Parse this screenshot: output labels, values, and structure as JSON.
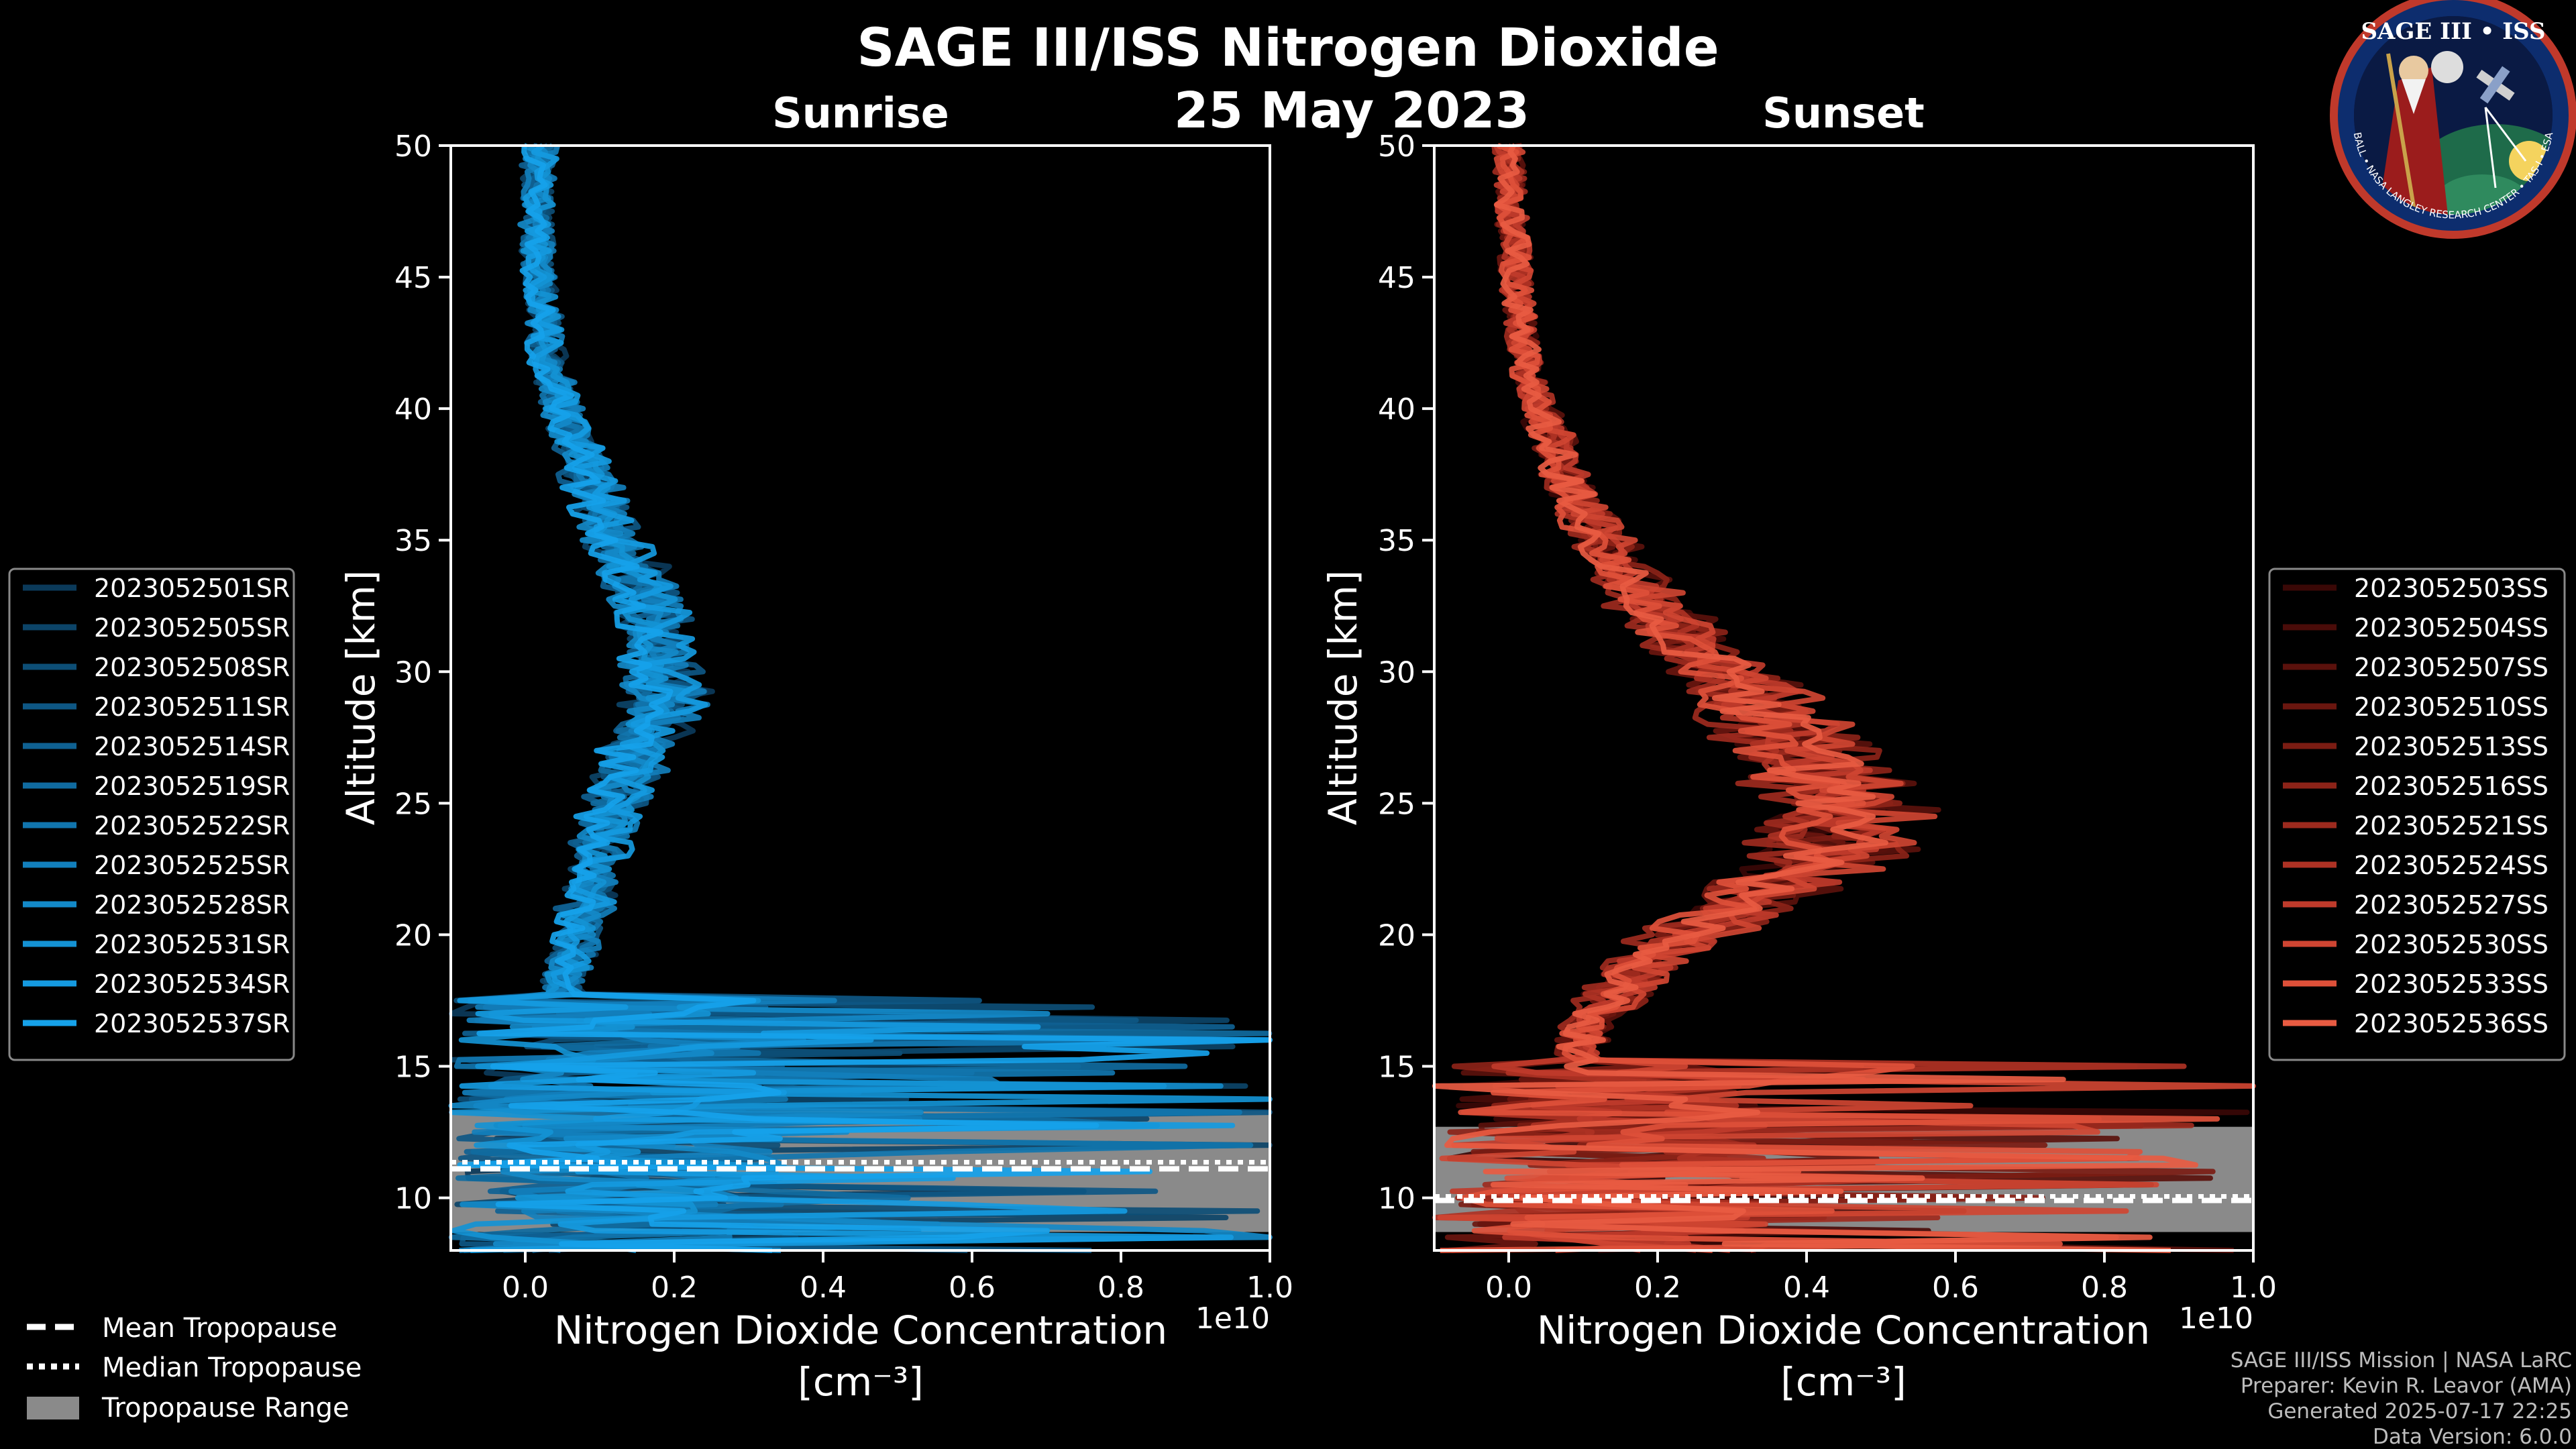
{
  "title": "SAGE III/ISS Nitrogen Dioxide",
  "date": "25 May 2023",
  "logo": {
    "text": "SAGE III • ISS",
    "ring_text": "BALL • NASA LANGLEY RESEARCH CENTER • TAS-I • ESA"
  },
  "chart_data": [
    {
      "type": "line",
      "title": "Sunrise",
      "xlabel": "Nitrogen Dioxide Concentration",
      "xunit": "[cm⁻³]",
      "ylabel": "Altitude [km]",
      "offset_label": "1e10",
      "xlim": [
        -0.1,
        1.0
      ],
      "ylim": [
        8,
        50
      ],
      "xticks": [
        "0.0",
        "0.2",
        "0.4",
        "0.6",
        "0.8",
        "1.0"
      ],
      "yticks": [
        "10",
        "15",
        "20",
        "25",
        "30",
        "35",
        "40",
        "45",
        "50"
      ],
      "tropopause": {
        "mean": 11.1,
        "median": 11.2,
        "range": [
          8.7,
          13.3
        ]
      },
      "series_names": [
        "2023052501SR",
        "2023052505SR",
        "2023052508SR",
        "2023052511SR",
        "2023052514SR",
        "2023052519SR",
        "2023052522SR",
        "2023052525SR",
        "2023052528SR",
        "2023052531SR",
        "2023052534SR",
        "2023052537SR"
      ],
      "series_colors": [
        "#0b3a5a",
        "#0c4468",
        "#0d4e76",
        "#0e5784",
        "#0f6192",
        "#106ba0",
        "#1175ae",
        "#127fbc",
        "#1389c8",
        "#1492d4",
        "#159ae0",
        "#16a2ea"
      ],
      "profile": [
        [
          50,
          0.02
        ],
        [
          47,
          0.015
        ],
        [
          45,
          0.02
        ],
        [
          42,
          0.03
        ],
        [
          40,
          0.05
        ],
        [
          37,
          0.09
        ],
        [
          35,
          0.12
        ],
        [
          33,
          0.16
        ],
        [
          31,
          0.18
        ],
        [
          29,
          0.19
        ],
        [
          27,
          0.15
        ],
        [
          25,
          0.12
        ],
        [
          23,
          0.1
        ],
        [
          21,
          0.08
        ],
        [
          19,
          0.06
        ],
        [
          18,
          0.05
        ]
      ]
    },
    {
      "type": "line",
      "title": "Sunset",
      "xlabel": "Nitrogen Dioxide Concentration",
      "xunit": "[cm⁻³]",
      "ylabel": "Altitude [km]",
      "offset_label": "1e10",
      "xlim": [
        -0.1,
        1.0
      ],
      "ylim": [
        8,
        50
      ],
      "xticks": [
        "0.0",
        "0.2",
        "0.4",
        "0.6",
        "0.8",
        "1.0"
      ],
      "yticks": [
        "10",
        "15",
        "20",
        "25",
        "30",
        "35",
        "40",
        "45",
        "50"
      ],
      "tropopause": {
        "mean": 9.9,
        "median": 9.9,
        "range": [
          8.7,
          12.7
        ]
      },
      "series_names": [
        "2023052503SS",
        "2023052504SS",
        "2023052507SS",
        "2023052510SS",
        "2023052513SS",
        "2023052516SS",
        "2023052521SS",
        "2023052524SS",
        "2023052527SS",
        "2023052530SS",
        "2023052533SS",
        "2023052536SS"
      ],
      "series_colors": [
        "#3a0806",
        "#4a0c09",
        "#5a110c",
        "#6a160f",
        "#7b1c13",
        "#8c2318",
        "#9d2a1e",
        "#ae3224",
        "#bf3b2b",
        "#cf4532",
        "#de5039",
        "#e85b42"
      ],
      "profile": [
        [
          50,
          0.0
        ],
        [
          47,
          0.005
        ],
        [
          45,
          0.01
        ],
        [
          42,
          0.02
        ],
        [
          40,
          0.04
        ],
        [
          37,
          0.08
        ],
        [
          35,
          0.12
        ],
        [
          33,
          0.17
        ],
        [
          31,
          0.24
        ],
        [
          29,
          0.32
        ],
        [
          27,
          0.39
        ],
        [
          25,
          0.44
        ],
        [
          23,
          0.42
        ],
        [
          21,
          0.3
        ],
        [
          19,
          0.18
        ],
        [
          17,
          0.12
        ],
        [
          16,
          0.1
        ],
        [
          15,
          0.08
        ]
      ]
    }
  ],
  "tropopause_legend": {
    "mean": "Mean Tropopause",
    "median": "Median Tropopause",
    "range": "Tropopause Range"
  },
  "tropopause_color": "#8a8a8a",
  "credits": [
    "SAGE III/ISS Mission | NASA LaRC",
    "Preparer: Kevin R. Leavor (AMA)",
    "Generated 2025-07-17 22:25",
    "Data Version: 6.0.0"
  ]
}
